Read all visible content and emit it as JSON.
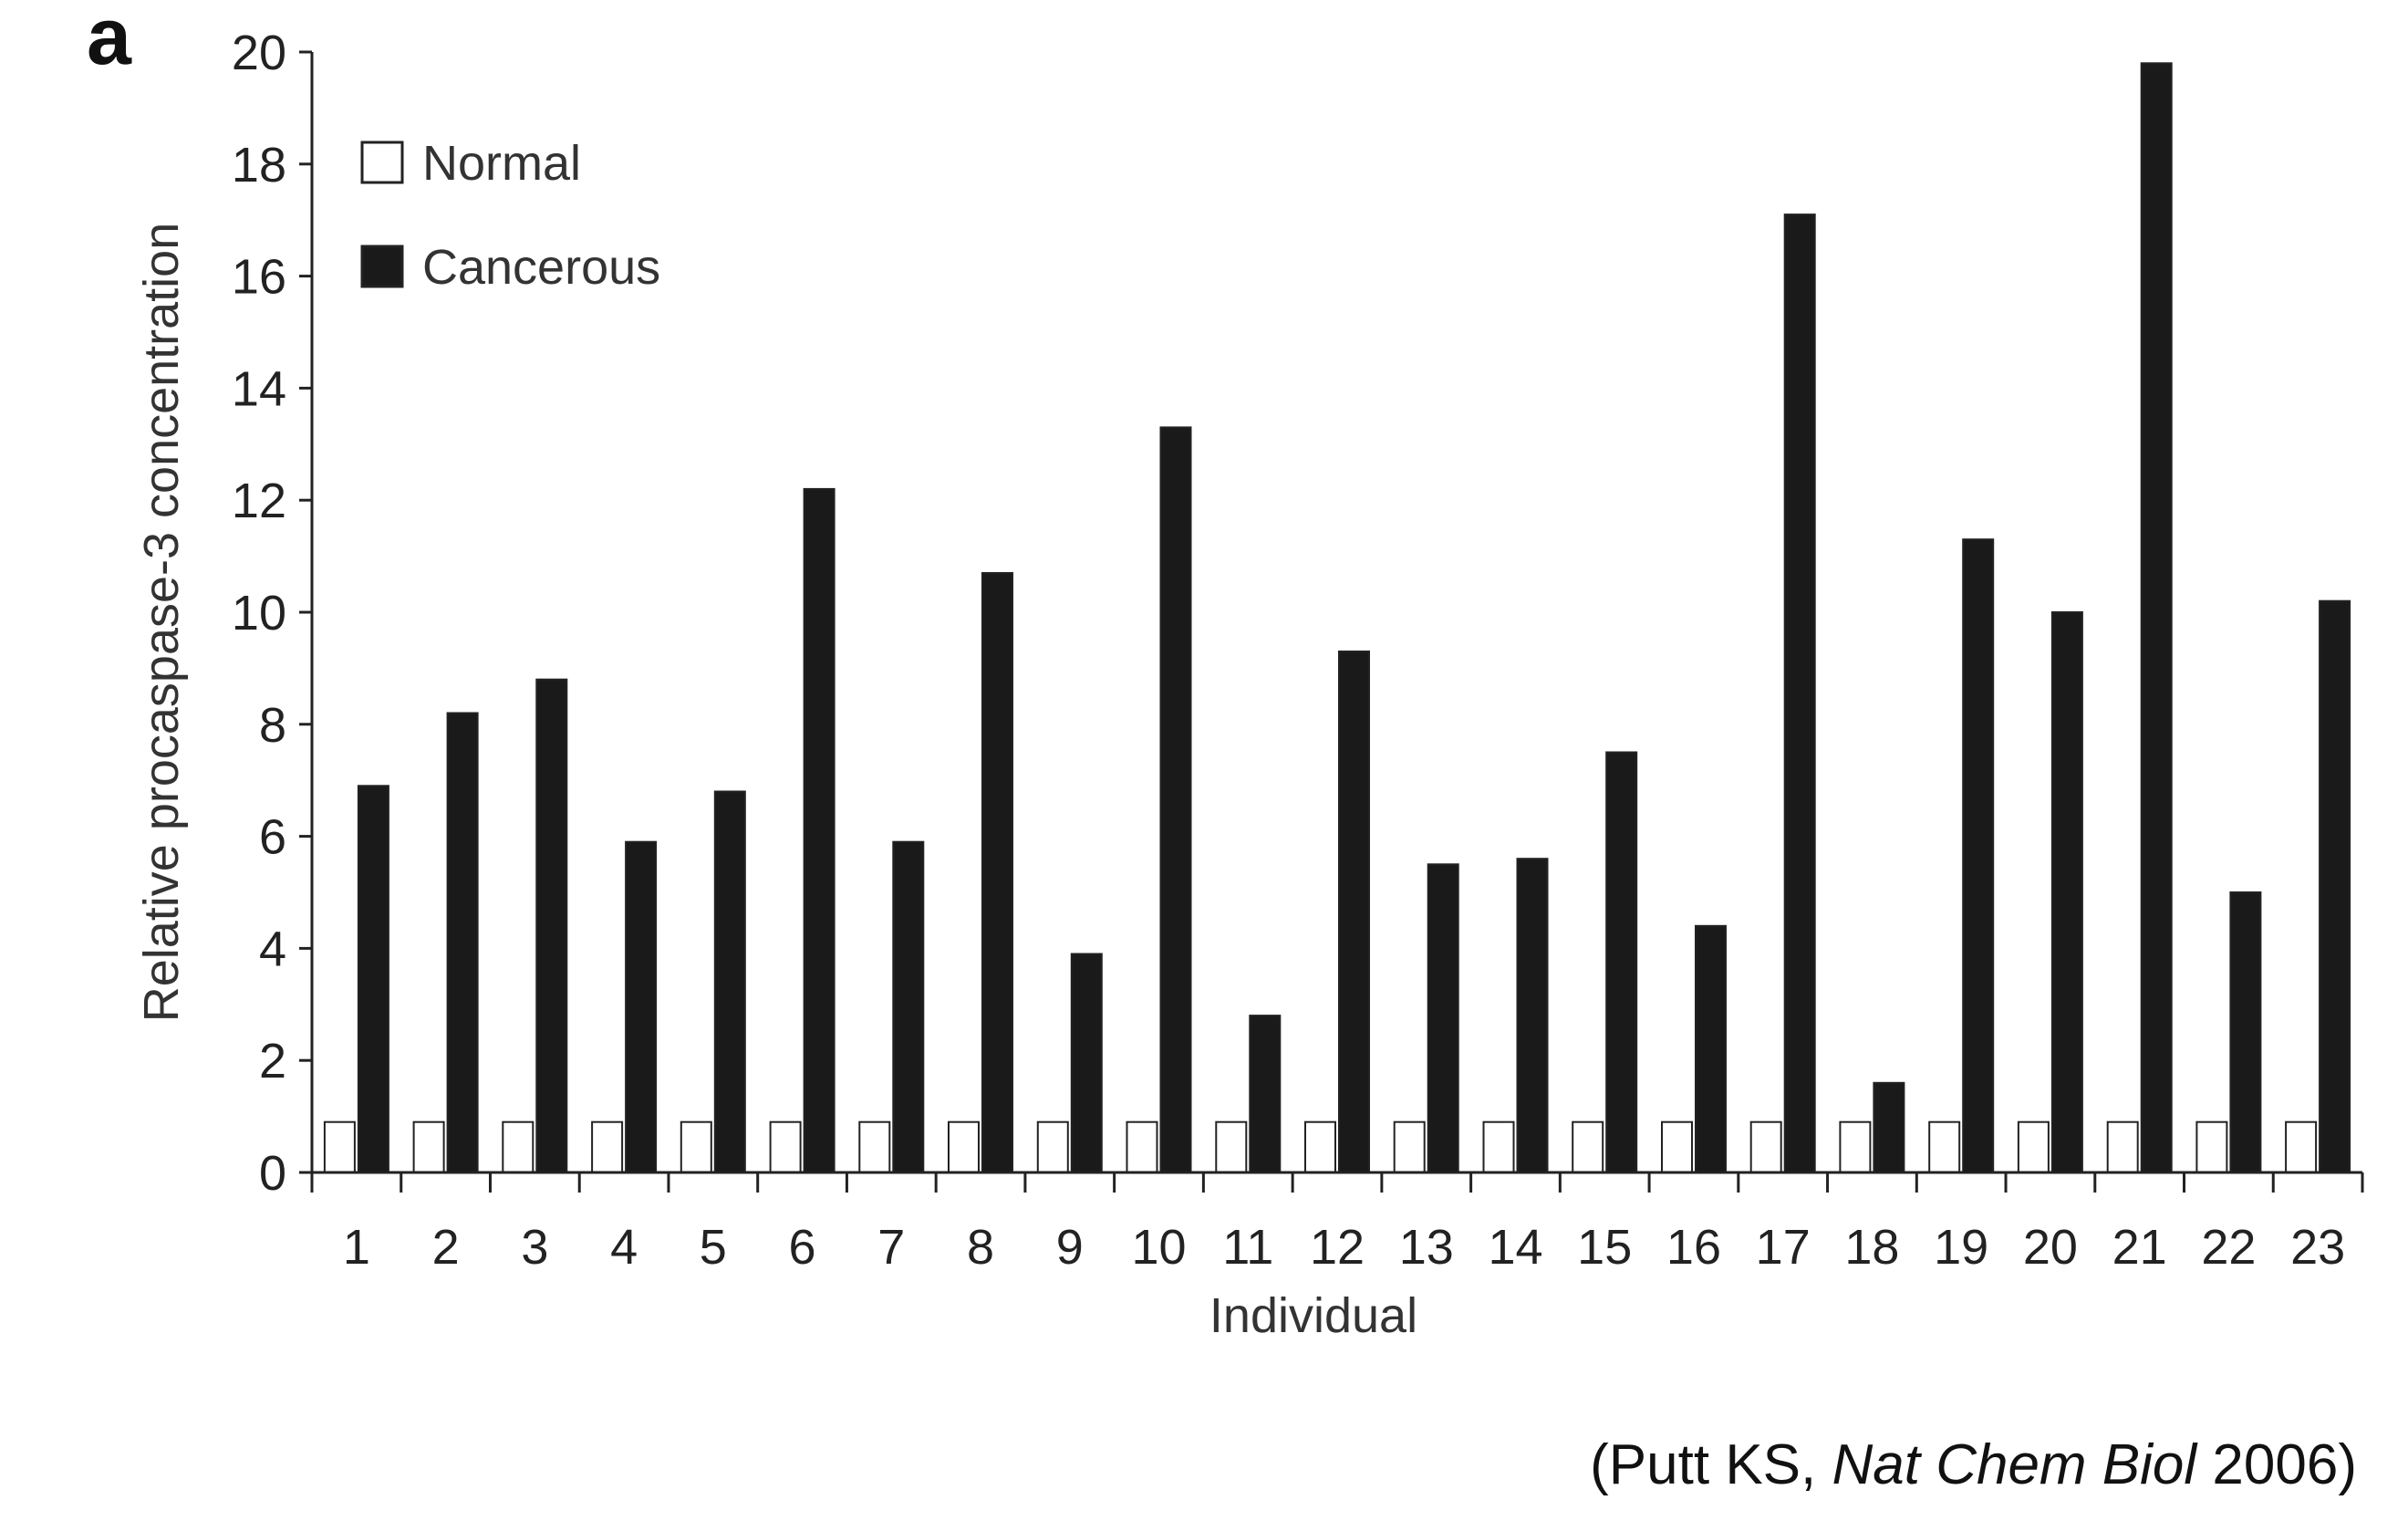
{
  "panel_label": "a",
  "citation": {
    "prefix": "(Putt KS, ",
    "journal": "Nat Chem Biol",
    "suffix": " 2006)"
  },
  "colors": {
    "normal_fill": "#ffffff",
    "cancerous_fill": "#1a1a1a",
    "axis": "#222222"
  },
  "chart_data": {
    "type": "bar",
    "title": "",
    "xlabel": "Individual",
    "ylabel": "Relative procaspase-3 concentration",
    "ylim": [
      0,
      20
    ],
    "yticks": [
      0,
      2,
      4,
      6,
      8,
      10,
      12,
      14,
      16,
      18,
      20
    ],
    "categories": [
      "1",
      "2",
      "3",
      "4",
      "5",
      "6",
      "7",
      "8",
      "9",
      "10",
      "11",
      "12",
      "13",
      "14",
      "15",
      "16",
      "17",
      "18",
      "19",
      "20",
      "21",
      "22",
      "23"
    ],
    "legend_position": "top-left",
    "grid": false,
    "series": [
      {
        "name": "Normal",
        "values": [
          0.9,
          0.9,
          0.9,
          0.9,
          0.9,
          0.9,
          0.9,
          0.9,
          0.9,
          0.9,
          0.9,
          0.9,
          0.9,
          0.9,
          0.9,
          0.9,
          0.9,
          0.9,
          0.9,
          0.9,
          0.9,
          0.9,
          0.9
        ]
      },
      {
        "name": "Cancerous",
        "values": [
          6.9,
          8.2,
          8.8,
          5.9,
          6.8,
          12.2,
          5.9,
          10.7,
          3.9,
          13.3,
          2.8,
          9.3,
          5.5,
          5.6,
          7.5,
          4.4,
          17.1,
          1.6,
          11.3,
          10.0,
          19.8,
          5.0,
          10.2
        ]
      }
    ]
  }
}
